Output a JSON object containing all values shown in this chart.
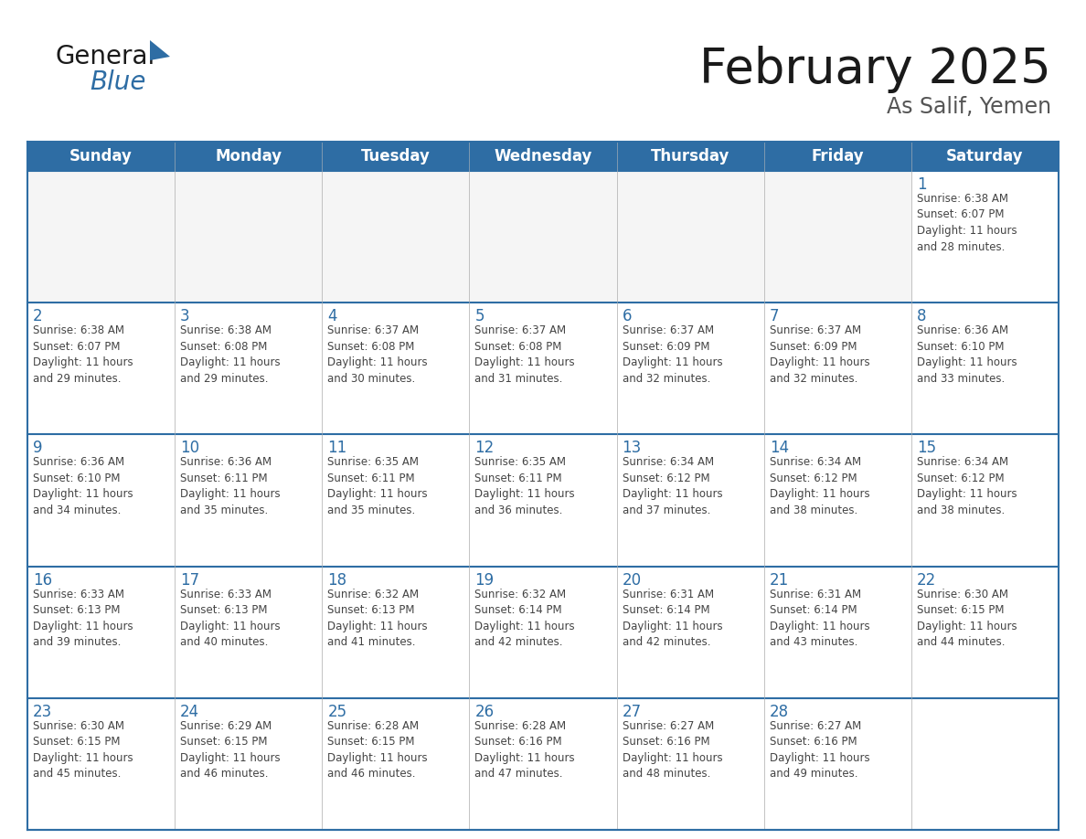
{
  "title": "February 2025",
  "subtitle": "As Salif, Yemen",
  "header_bg": "#2E6DA4",
  "header_text_color": "#FFFFFF",
  "cell_bg": "#FFFFFF",
  "cell_border_top_color": "#2E6DA4",
  "cell_border_other_color": "#CCCCCC",
  "day_number_color": "#2E6DA4",
  "cell_text_color": "#444444",
  "background_color": "#FFFFFF",
  "days_of_week": [
    "Sunday",
    "Monday",
    "Tuesday",
    "Wednesday",
    "Thursday",
    "Friday",
    "Saturday"
  ],
  "weeks": [
    [
      {
        "day": "",
        "info": ""
      },
      {
        "day": "",
        "info": ""
      },
      {
        "day": "",
        "info": ""
      },
      {
        "day": "",
        "info": ""
      },
      {
        "day": "",
        "info": ""
      },
      {
        "day": "",
        "info": ""
      },
      {
        "day": "1",
        "info": "Sunrise: 6:38 AM\nSunset: 6:07 PM\nDaylight: 11 hours\nand 28 minutes."
      }
    ],
    [
      {
        "day": "2",
        "info": "Sunrise: 6:38 AM\nSunset: 6:07 PM\nDaylight: 11 hours\nand 29 minutes."
      },
      {
        "day": "3",
        "info": "Sunrise: 6:38 AM\nSunset: 6:08 PM\nDaylight: 11 hours\nand 29 minutes."
      },
      {
        "day": "4",
        "info": "Sunrise: 6:37 AM\nSunset: 6:08 PM\nDaylight: 11 hours\nand 30 minutes."
      },
      {
        "day": "5",
        "info": "Sunrise: 6:37 AM\nSunset: 6:08 PM\nDaylight: 11 hours\nand 31 minutes."
      },
      {
        "day": "6",
        "info": "Sunrise: 6:37 AM\nSunset: 6:09 PM\nDaylight: 11 hours\nand 32 minutes."
      },
      {
        "day": "7",
        "info": "Sunrise: 6:37 AM\nSunset: 6:09 PM\nDaylight: 11 hours\nand 32 minutes."
      },
      {
        "day": "8",
        "info": "Sunrise: 6:36 AM\nSunset: 6:10 PM\nDaylight: 11 hours\nand 33 minutes."
      }
    ],
    [
      {
        "day": "9",
        "info": "Sunrise: 6:36 AM\nSunset: 6:10 PM\nDaylight: 11 hours\nand 34 minutes."
      },
      {
        "day": "10",
        "info": "Sunrise: 6:36 AM\nSunset: 6:11 PM\nDaylight: 11 hours\nand 35 minutes."
      },
      {
        "day": "11",
        "info": "Sunrise: 6:35 AM\nSunset: 6:11 PM\nDaylight: 11 hours\nand 35 minutes."
      },
      {
        "day": "12",
        "info": "Sunrise: 6:35 AM\nSunset: 6:11 PM\nDaylight: 11 hours\nand 36 minutes."
      },
      {
        "day": "13",
        "info": "Sunrise: 6:34 AM\nSunset: 6:12 PM\nDaylight: 11 hours\nand 37 minutes."
      },
      {
        "day": "14",
        "info": "Sunrise: 6:34 AM\nSunset: 6:12 PM\nDaylight: 11 hours\nand 38 minutes."
      },
      {
        "day": "15",
        "info": "Sunrise: 6:34 AM\nSunset: 6:12 PM\nDaylight: 11 hours\nand 38 minutes."
      }
    ],
    [
      {
        "day": "16",
        "info": "Sunrise: 6:33 AM\nSunset: 6:13 PM\nDaylight: 11 hours\nand 39 minutes."
      },
      {
        "day": "17",
        "info": "Sunrise: 6:33 AM\nSunset: 6:13 PM\nDaylight: 11 hours\nand 40 minutes."
      },
      {
        "day": "18",
        "info": "Sunrise: 6:32 AM\nSunset: 6:13 PM\nDaylight: 11 hours\nand 41 minutes."
      },
      {
        "day": "19",
        "info": "Sunrise: 6:32 AM\nSunset: 6:14 PM\nDaylight: 11 hours\nand 42 minutes."
      },
      {
        "day": "20",
        "info": "Sunrise: 6:31 AM\nSunset: 6:14 PM\nDaylight: 11 hours\nand 42 minutes."
      },
      {
        "day": "21",
        "info": "Sunrise: 6:31 AM\nSunset: 6:14 PM\nDaylight: 11 hours\nand 43 minutes."
      },
      {
        "day": "22",
        "info": "Sunrise: 6:30 AM\nSunset: 6:15 PM\nDaylight: 11 hours\nand 44 minutes."
      }
    ],
    [
      {
        "day": "23",
        "info": "Sunrise: 6:30 AM\nSunset: 6:15 PM\nDaylight: 11 hours\nand 45 minutes."
      },
      {
        "day": "24",
        "info": "Sunrise: 6:29 AM\nSunset: 6:15 PM\nDaylight: 11 hours\nand 46 minutes."
      },
      {
        "day": "25",
        "info": "Sunrise: 6:28 AM\nSunset: 6:15 PM\nDaylight: 11 hours\nand 46 minutes."
      },
      {
        "day": "26",
        "info": "Sunrise: 6:28 AM\nSunset: 6:16 PM\nDaylight: 11 hours\nand 47 minutes."
      },
      {
        "day": "27",
        "info": "Sunrise: 6:27 AM\nSunset: 6:16 PM\nDaylight: 11 hours\nand 48 minutes."
      },
      {
        "day": "28",
        "info": "Sunrise: 6:27 AM\nSunset: 6:16 PM\nDaylight: 11 hours\nand 49 minutes."
      },
      {
        "day": "",
        "info": ""
      }
    ]
  ],
  "logo_color_general": "#1a1a1a",
  "logo_color_blue": "#2E6DA4",
  "title_fontsize": 38,
  "subtitle_fontsize": 17,
  "header_fontsize": 12,
  "day_num_fontsize": 12,
  "cell_text_fontsize": 8.5
}
